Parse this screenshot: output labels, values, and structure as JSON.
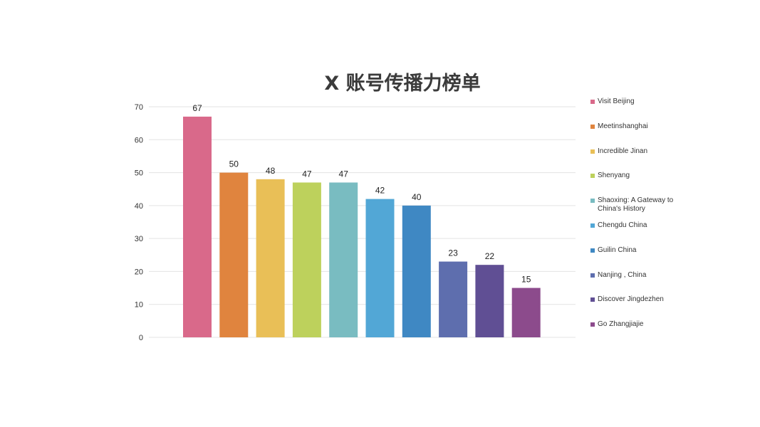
{
  "chart_data": {
    "type": "bar",
    "title": "X 账号传播力榜单",
    "xlabel": "",
    "ylabel": "",
    "ylim": [
      0,
      70
    ],
    "yticks": [
      0,
      10,
      20,
      30,
      40,
      50,
      60,
      70
    ],
    "grid": true,
    "legend_position": "right",
    "categories": [
      "Visit Beijing",
      "Meetinshanghai",
      "Incredible Jinan",
      "Shenyang",
      "Shaoxing: A Gateway to China's History",
      "Chengdu China",
      "Guilin China",
      "Nanjing , China",
      "Discover Jingdezhen",
      "Go Zhangjiajie"
    ],
    "values": [
      67,
      50,
      48,
      47,
      47,
      42,
      40,
      23,
      22,
      15
    ],
    "colors": [
      "#d9698a",
      "#e0843e",
      "#e9bf57",
      "#bdd15c",
      "#79bcc1",
      "#52a7d6",
      "#3f88c3",
      "#5e6eae",
      "#604f94",
      "#8c4b8c"
    ]
  }
}
